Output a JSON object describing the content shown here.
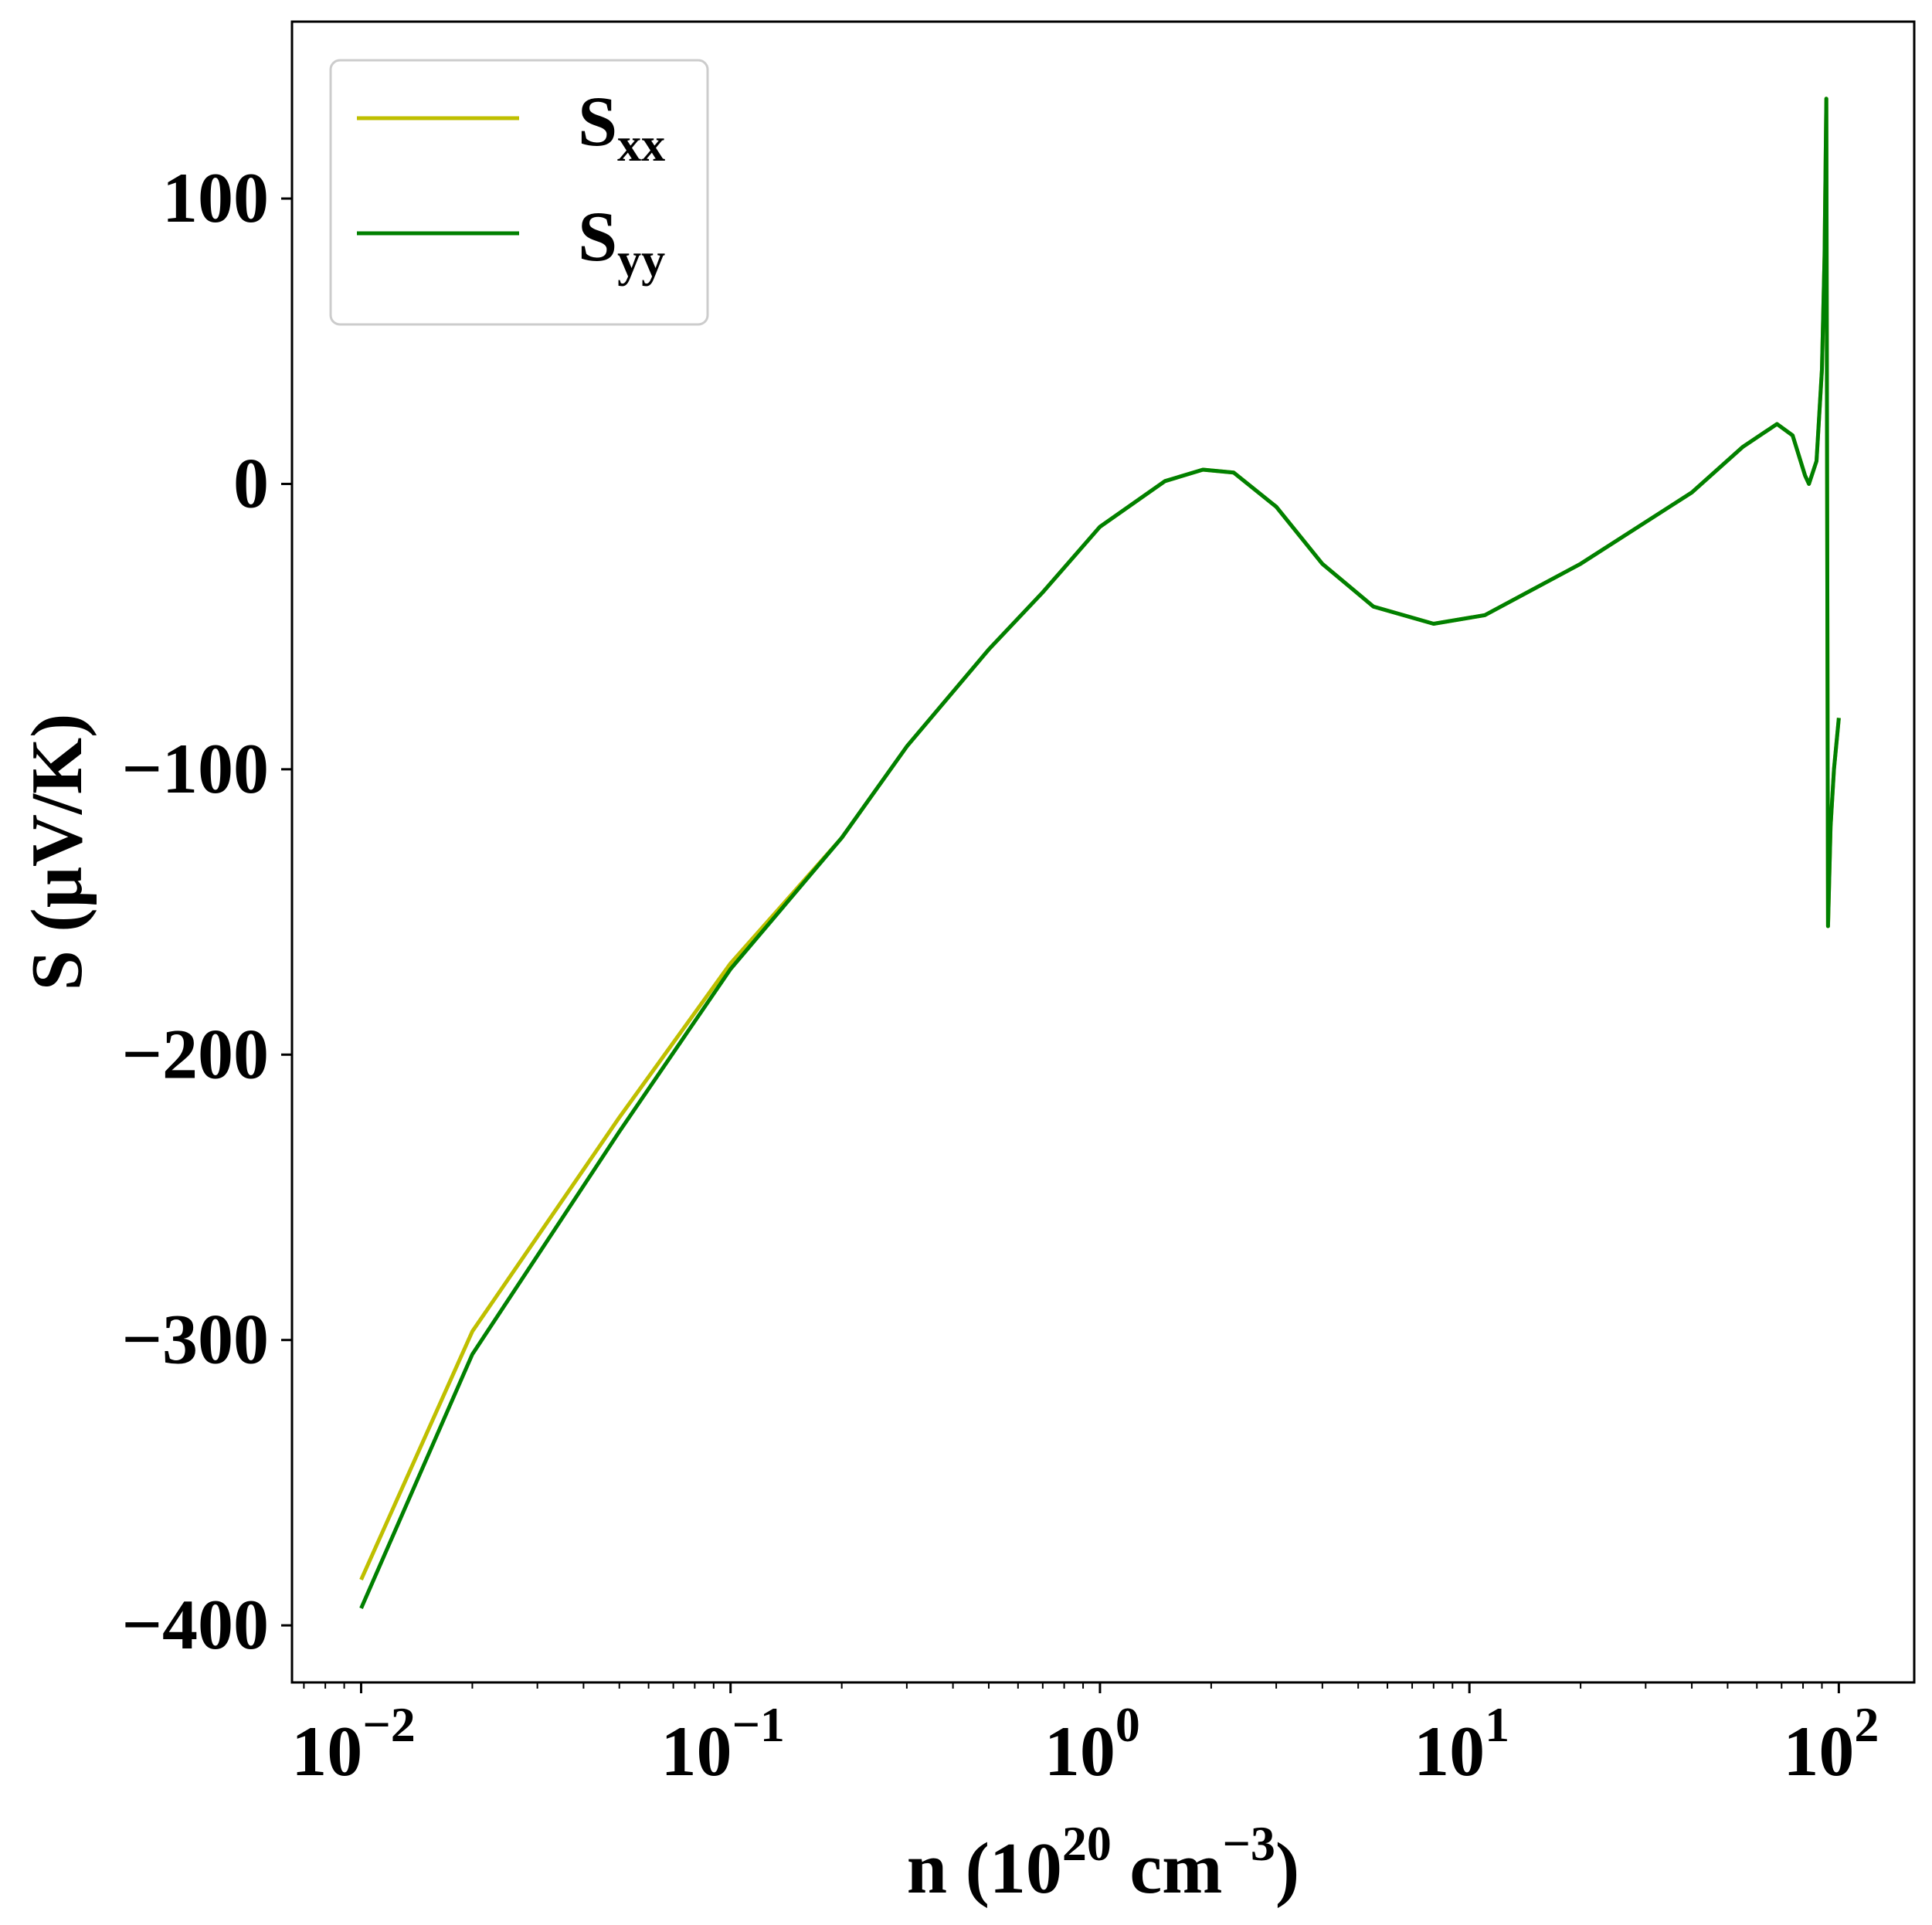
{
  "chart_data": {
    "type": "line",
    "xlabel": {
      "prefix": "n (10",
      "exp1": "20",
      "mid": " cm",
      "exp2": "−3",
      "suffix": ")"
    },
    "ylabel": "S (μV/K)",
    "x_scale": "log",
    "xlim": [
      0.0065,
      160
    ],
    "ylim": [
      -420,
      162
    ],
    "grid": false,
    "legend_position": "top-left",
    "x_ticks": [
      {
        "value": 0.01,
        "base": "10",
        "exp": "−2"
      },
      {
        "value": 0.1,
        "base": "10",
        "exp": "−1"
      },
      {
        "value": 1,
        "base": "10",
        "exp": "0"
      },
      {
        "value": 10,
        "base": "10",
        "exp": "1"
      },
      {
        "value": 100,
        "base": "10",
        "exp": "2"
      }
    ],
    "y_ticks": [
      {
        "value": 100,
        "label": "100"
      },
      {
        "value": 0,
        "label": "0"
      },
      {
        "value": -100,
        "label": "−100"
      },
      {
        "value": -200,
        "label": "−200"
      },
      {
        "value": -300,
        "label": "−300"
      },
      {
        "value": -400,
        "label": "−400"
      }
    ],
    "series": [
      {
        "name": "S",
        "subscript": "xx",
        "color": "#bfbf00",
        "points": [
          [
            0.01,
            -384
          ],
          [
            0.02,
            -297
          ],
          [
            0.05,
            -222
          ],
          [
            0.1,
            -168
          ],
          [
            0.2,
            -124
          ],
          [
            0.3,
            -92
          ],
          [
            0.5,
            -58
          ],
          [
            0.7,
            -38
          ],
          [
            1.0,
            -15
          ],
          [
            1.5,
            1
          ],
          [
            1.9,
            5
          ],
          [
            2.3,
            4
          ],
          [
            3.0,
            -8
          ],
          [
            4.0,
            -28
          ],
          [
            5.5,
            -43
          ],
          [
            8.0,
            -49
          ],
          [
            11,
            -46
          ],
          [
            20,
            -28
          ],
          [
            40,
            -3
          ],
          [
            55,
            13
          ],
          [
            68,
            21
          ],
          [
            75,
            17
          ],
          [
            81,
            3
          ],
          [
            83,
            0
          ],
          [
            87,
            8
          ],
          [
            90,
            40
          ],
          [
            91.5,
            80
          ],
          [
            92.5,
            135
          ],
          [
            93.5,
            -155
          ],
          [
            95,
            -120
          ],
          [
            97,
            -100
          ],
          [
            100,
            -82
          ]
        ]
      },
      {
        "name": "S",
        "subscript": "yy",
        "color": "#008000",
        "points": [
          [
            0.01,
            -394
          ],
          [
            0.02,
            -305
          ],
          [
            0.05,
            -227
          ],
          [
            0.1,
            -170
          ],
          [
            0.2,
            -124
          ],
          [
            0.3,
            -92
          ],
          [
            0.5,
            -58
          ],
          [
            0.7,
            -38
          ],
          [
            1.0,
            -15
          ],
          [
            1.5,
            1
          ],
          [
            1.9,
            5
          ],
          [
            2.3,
            4
          ],
          [
            3.0,
            -8
          ],
          [
            4.0,
            -28
          ],
          [
            5.5,
            -43
          ],
          [
            8.0,
            -49
          ],
          [
            11,
            -46
          ],
          [
            20,
            -28
          ],
          [
            40,
            -3
          ],
          [
            55,
            13
          ],
          [
            68,
            21
          ],
          [
            75,
            17
          ],
          [
            81,
            3
          ],
          [
            83,
            0
          ],
          [
            87,
            8
          ],
          [
            90,
            40
          ],
          [
            91.5,
            80
          ],
          [
            92.5,
            135
          ],
          [
            93.5,
            -155
          ],
          [
            95,
            -120
          ],
          [
            97,
            -100
          ],
          [
            100,
            -82
          ]
        ]
      }
    ]
  }
}
